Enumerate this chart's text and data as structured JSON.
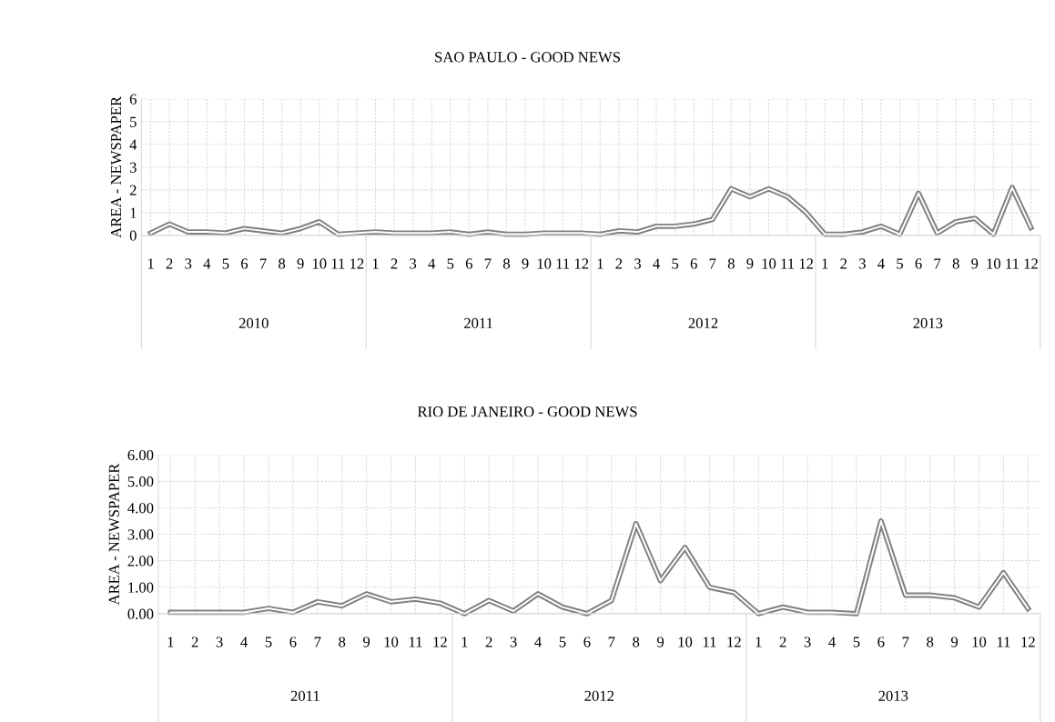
{
  "chart_data": [
    {
      "type": "line",
      "title": "SAO PAULO - GOOD NEWS",
      "ylabel": "AREA - NEWSPAPER",
      "categories": [
        "1",
        "2",
        "3",
        "4",
        "5",
        "6",
        "7",
        "8",
        "9",
        "10",
        "11",
        "12",
        "1",
        "2",
        "3",
        "4",
        "5",
        "6",
        "7",
        "8",
        "9",
        "10",
        "11",
        "12",
        "1",
        "2",
        "3",
        "4",
        "5",
        "6",
        "7",
        "8",
        "9",
        "10",
        "11",
        "12",
        "1",
        "2",
        "3",
        "4",
        "5",
        "6",
        "7",
        "8",
        "9",
        "10",
        "11",
        "12"
      ],
      "annotations": [
        "2010",
        "2011",
        "2012",
        "2013"
      ],
      "series": [
        {
          "color": "#808080",
          "values": [
            0.1,
            0.5,
            0.15,
            0.15,
            0.1,
            0.3,
            0.2,
            0.1,
            0.3,
            0.6,
            0.05,
            0.1,
            0.15,
            0.1,
            0.1,
            0.1,
            0.15,
            0.05,
            0.15,
            0.05,
            0.05,
            0.1,
            0.1,
            0.1,
            0.05,
            0.2,
            0.15,
            0.4,
            0.4,
            0.5,
            0.7,
            2.05,
            1.7,
            2.05,
            1.7,
            1.0,
            0.05,
            0.05,
            0.15,
            0.4,
            0.05,
            1.85,
            0.1,
            0.6,
            0.75,
            0.05,
            2.1,
            0.35
          ]
        }
      ],
      "ylim": [
        0,
        6
      ],
      "yticks": [
        0,
        1,
        2,
        3,
        4,
        5,
        6
      ],
      "grid": true,
      "marker": "none",
      "line_style": "solid"
    },
    {
      "type": "line",
      "title": "RIO DE JANEIRO - GOOD NEWS",
      "ylabel": "AREA - NEWSPAPER",
      "categories": [
        "1",
        "2",
        "3",
        "4",
        "5",
        "6",
        "7",
        "8",
        "9",
        "10",
        "11",
        "12",
        "1",
        "2",
        "3",
        "4",
        "5",
        "6",
        "7",
        "8",
        "9",
        "10",
        "11",
        "12",
        "1",
        "2",
        "3",
        "4",
        "5",
        "6",
        "7",
        "8",
        "9",
        "10",
        "11",
        "12"
      ],
      "annotations": [
        "2011",
        "2012",
        "2013"
      ],
      "series": [
        {
          "color": "#808080",
          "values": [
            0.05,
            0.05,
            0.05,
            0.05,
            0.2,
            0.05,
            0.45,
            0.3,
            0.75,
            0.45,
            0.55,
            0.4,
            0.0,
            0.5,
            0.1,
            0.75,
            0.25,
            0.0,
            0.5,
            3.4,
            1.25,
            2.5,
            1.0,
            0.8,
            0.0,
            0.25,
            0.05,
            0.05,
            0.0,
            3.5,
            0.7,
            0.7,
            0.6,
            0.25,
            1.55,
            0.2
          ]
        }
      ],
      "ylim": [
        0,
        6
      ],
      "yticks": [
        {
          "value": 0,
          "label": "0.00"
        },
        {
          "value": 1,
          "label": "1.00"
        },
        {
          "value": 2,
          "label": "2.00"
        },
        {
          "value": 3,
          "label": "3.00"
        },
        {
          "value": 4,
          "label": "4.00"
        },
        {
          "value": 5,
          "label": "5.00"
        },
        {
          "value": 6,
          "label": "6.00"
        }
      ],
      "grid": true,
      "marker": "none",
      "line_style": "solid"
    }
  ]
}
